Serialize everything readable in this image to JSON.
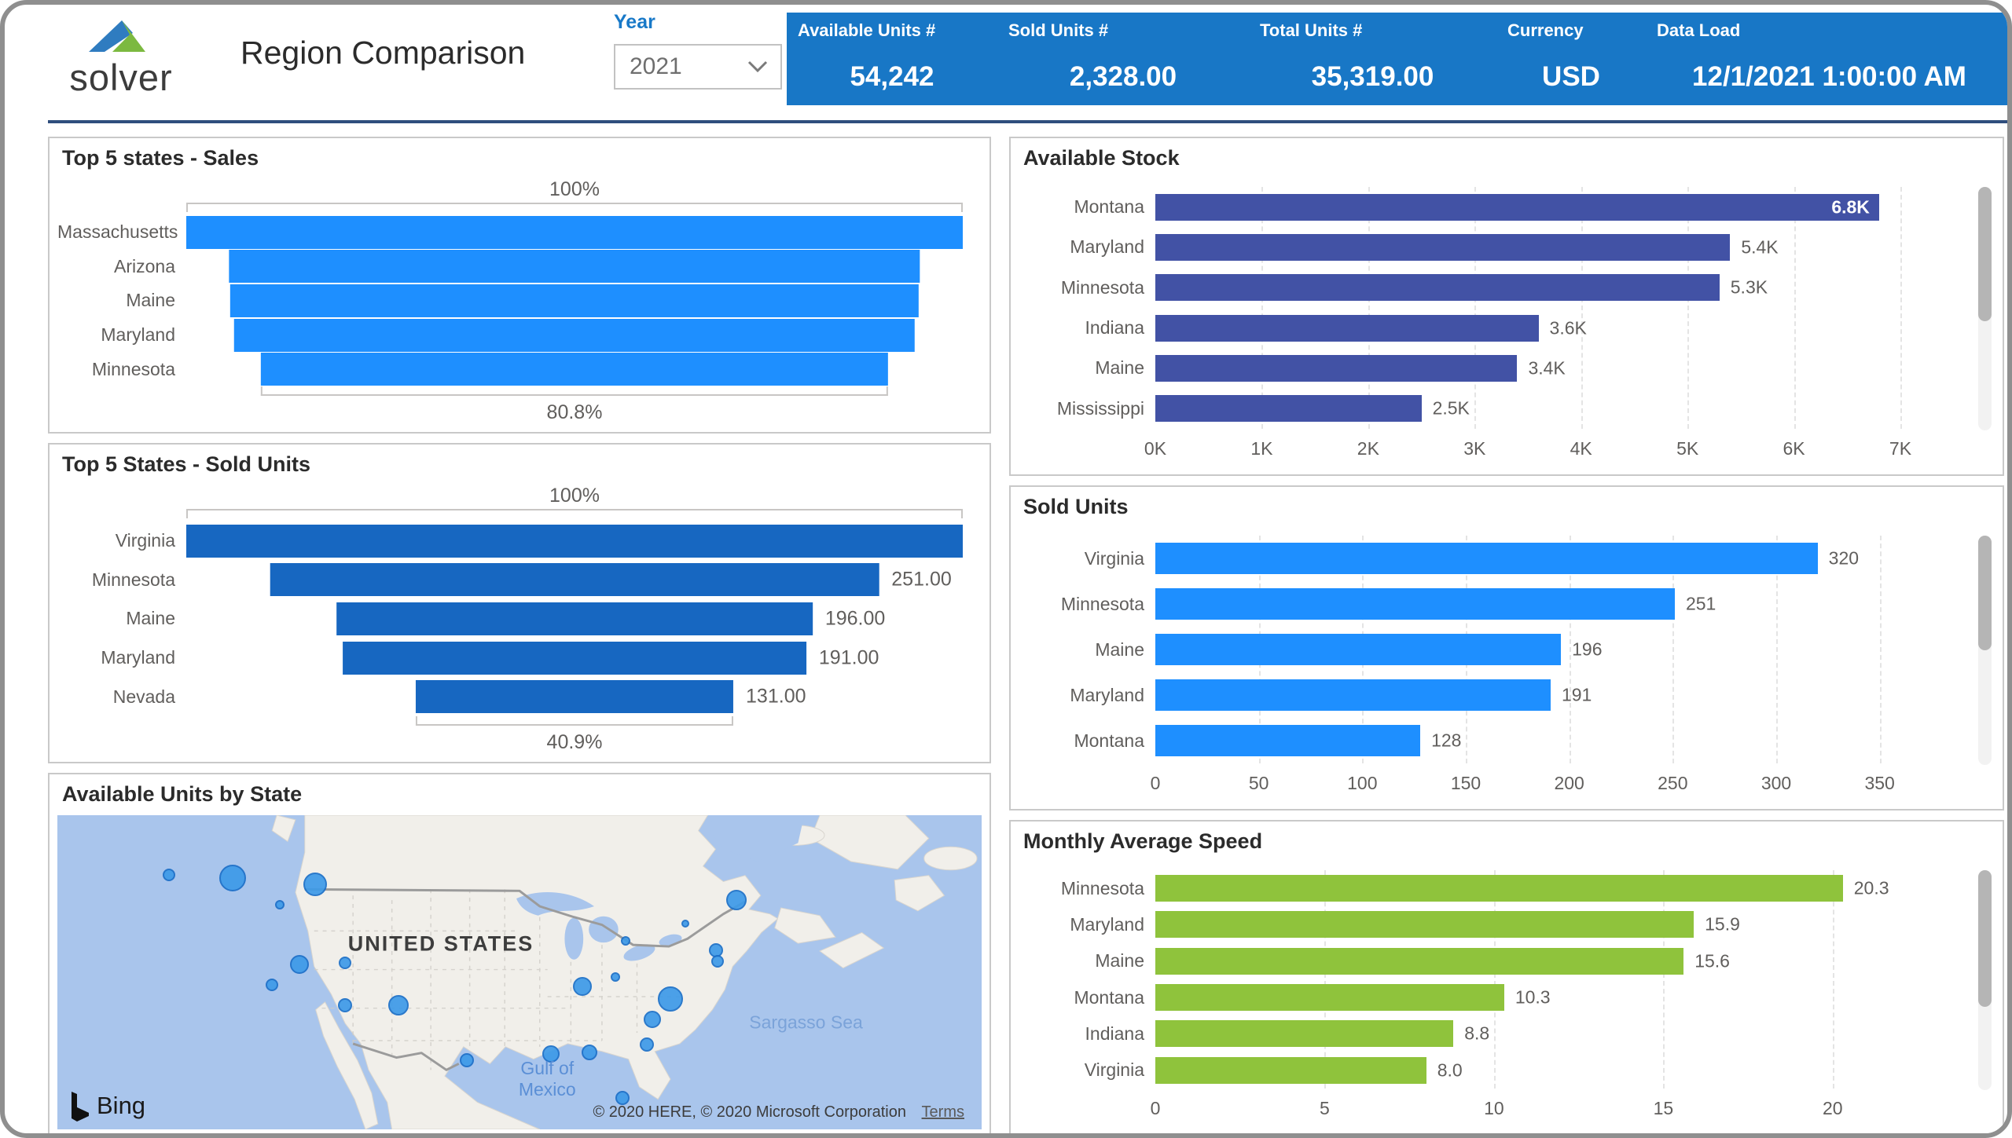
{
  "header": {
    "logo_text": "solver",
    "title": "Region Comparison",
    "year_filter": {
      "label": "Year",
      "value": "2021"
    },
    "kpis": [
      {
        "label": "Available Units #",
        "value": "54,242"
      },
      {
        "label": "Sold Units #",
        "value": "2,328.00"
      },
      {
        "label": "Total Units #",
        "value": "35,319.00"
      },
      {
        "label": "Currency",
        "value": "USD"
      },
      {
        "label": "Data Load",
        "value": "12/1/2021 1:00:00 AM"
      }
    ]
  },
  "colors": {
    "kpi_band": "#1877C6",
    "accent_blue": "#1879C8",
    "separator": "#2F4E7D",
    "funnel_light_blue": "#1E8FFF",
    "funnel_dark_blue": "#1767C1",
    "bar_indigo": "#4252A5",
    "bar_azure": "#1E8FFF",
    "bar_green": "#8FC33C",
    "map_water": "#A9C5EC",
    "map_land": "#F1EFEA",
    "bubble_fill": "#3D9AE8",
    "bubble_stroke": "#1B6FC8",
    "logo_blue": "#2F7CC0",
    "logo_green": "#7CB940"
  },
  "chart_data": [
    {
      "type": "funnel",
      "title": "Top 5 states - Sales",
      "categories": [
        "Massachusetts",
        "Arizona",
        "Maine",
        "Maryland",
        "Minnesota"
      ],
      "values_pct": [
        100,
        89.0,
        88.7,
        87.7,
        80.8
      ],
      "data_labels": [
        "",
        "",
        "",
        "",
        ""
      ],
      "top_annotation": "100%",
      "bottom_annotation": "80.8%",
      "color_key": "funnel_light_blue"
    },
    {
      "type": "funnel",
      "title": "Top 5 States - Sold Units",
      "categories": [
        "Virginia",
        "Minnesota",
        "Maine",
        "Maryland",
        "Nevada"
      ],
      "values": [
        320,
        251,
        196,
        191,
        131
      ],
      "values_pct": [
        100,
        78.4,
        61.3,
        59.7,
        40.9
      ],
      "data_labels": [
        "",
        "251.00",
        "196.00",
        "191.00",
        "131.00"
      ],
      "top_annotation": "100%",
      "bottom_annotation": "40.9%",
      "color_key": "funnel_dark_blue"
    },
    {
      "type": "bar",
      "title": "Available Stock",
      "categories": [
        "Montana",
        "Maryland",
        "Minnesota",
        "Indiana",
        "Maine",
        "Mississippi"
      ],
      "values": [
        6.8,
        5.4,
        5.3,
        3.6,
        3.4,
        2.5
      ],
      "data_labels": [
        "6.8K",
        "5.4K",
        "5.3K",
        "3.6K",
        "3.4K",
        "2.5K"
      ],
      "label_inside": [
        true,
        false,
        false,
        false,
        false,
        false
      ],
      "xmax": 7,
      "xticks": [
        0,
        1,
        2,
        3,
        4,
        5,
        6,
        7
      ],
      "xtick_labels": [
        "0K",
        "1K",
        "2K",
        "3K",
        "4K",
        "5K",
        "6K",
        "7K"
      ],
      "color_key": "bar_indigo",
      "scroll_thumb": 0.55
    },
    {
      "type": "bar",
      "title": "Sold Units",
      "categories": [
        "Virginia",
        "Minnesota",
        "Maine",
        "Maryland",
        "Montana"
      ],
      "values": [
        320,
        251,
        196,
        191,
        128
      ],
      "data_labels": [
        "320",
        "251",
        "196",
        "191",
        "128"
      ],
      "label_inside": [
        false,
        false,
        false,
        false,
        false
      ],
      "xmax": 360,
      "xticks": [
        0,
        50,
        100,
        150,
        200,
        250,
        300,
        350
      ],
      "xtick_labels": [
        "0",
        "50",
        "100",
        "150",
        "200",
        "250",
        "300",
        "350"
      ],
      "color_key": "bar_azure",
      "scroll_thumb": 0.5
    },
    {
      "type": "bar",
      "title": "Monthly Average Speed",
      "categories": [
        "Minnesota",
        "Maryland",
        "Maine",
        "Montana",
        "Indiana",
        "Virginia"
      ],
      "values": [
        20.3,
        15.9,
        15.6,
        10.3,
        8.8,
        8.0
      ],
      "data_labels": [
        "20.3",
        "15.9",
        "15.6",
        "10.3",
        "8.8",
        "8.0"
      ],
      "label_inside": [
        false,
        false,
        false,
        false,
        false,
        false
      ],
      "xmax": 22,
      "xticks": [
        0,
        5,
        10,
        15,
        20
      ],
      "xtick_labels": [
        "0",
        "5",
        "10",
        "15",
        "20"
      ],
      "color_key": "bar_green",
      "scroll_thumb": 0.62
    }
  ],
  "map": {
    "title": "Available Units by State",
    "country_label": "UNITED STATES",
    "sea_label": "Sargasso Sea",
    "gulf_label_line1": "Gulf of",
    "gulf_label_line2": "Mexico",
    "attribution": "© 2020 HERE, © 2020 Microsoft Corporation",
    "terms_label": "Terms",
    "provider": "Bing",
    "bubbles": [
      {
        "x": 0.121,
        "y": 0.19,
        "r": 8
      },
      {
        "x": 0.19,
        "y": 0.2,
        "r": 17
      },
      {
        "x": 0.279,
        "y": 0.22,
        "r": 15
      },
      {
        "x": 0.241,
        "y": 0.285,
        "r": 6
      },
      {
        "x": 0.735,
        "y": 0.27,
        "r": 13
      },
      {
        "x": 0.679,
        "y": 0.345,
        "r": 5
      },
      {
        "x": 0.615,
        "y": 0.4,
        "r": 6
      },
      {
        "x": 0.713,
        "y": 0.43,
        "r": 9
      },
      {
        "x": 0.714,
        "y": 0.465,
        "r": 8
      },
      {
        "x": 0.568,
        "y": 0.545,
        "r": 12
      },
      {
        "x": 0.604,
        "y": 0.515,
        "r": 6
      },
      {
        "x": 0.262,
        "y": 0.475,
        "r": 12
      },
      {
        "x": 0.311,
        "y": 0.47,
        "r": 8
      },
      {
        "x": 0.663,
        "y": 0.585,
        "r": 16
      },
      {
        "x": 0.644,
        "y": 0.65,
        "r": 11
      },
      {
        "x": 0.232,
        "y": 0.54,
        "r": 8
      },
      {
        "x": 0.638,
        "y": 0.73,
        "r": 9
      },
      {
        "x": 0.311,
        "y": 0.605,
        "r": 9
      },
      {
        "x": 0.369,
        "y": 0.605,
        "r": 13
      },
      {
        "x": 0.534,
        "y": 0.76,
        "r": 11
      },
      {
        "x": 0.576,
        "y": 0.755,
        "r": 10
      },
      {
        "x": 0.443,
        "y": 0.78,
        "r": 9
      },
      {
        "x": 0.611,
        "y": 0.9,
        "r": 9
      }
    ]
  }
}
